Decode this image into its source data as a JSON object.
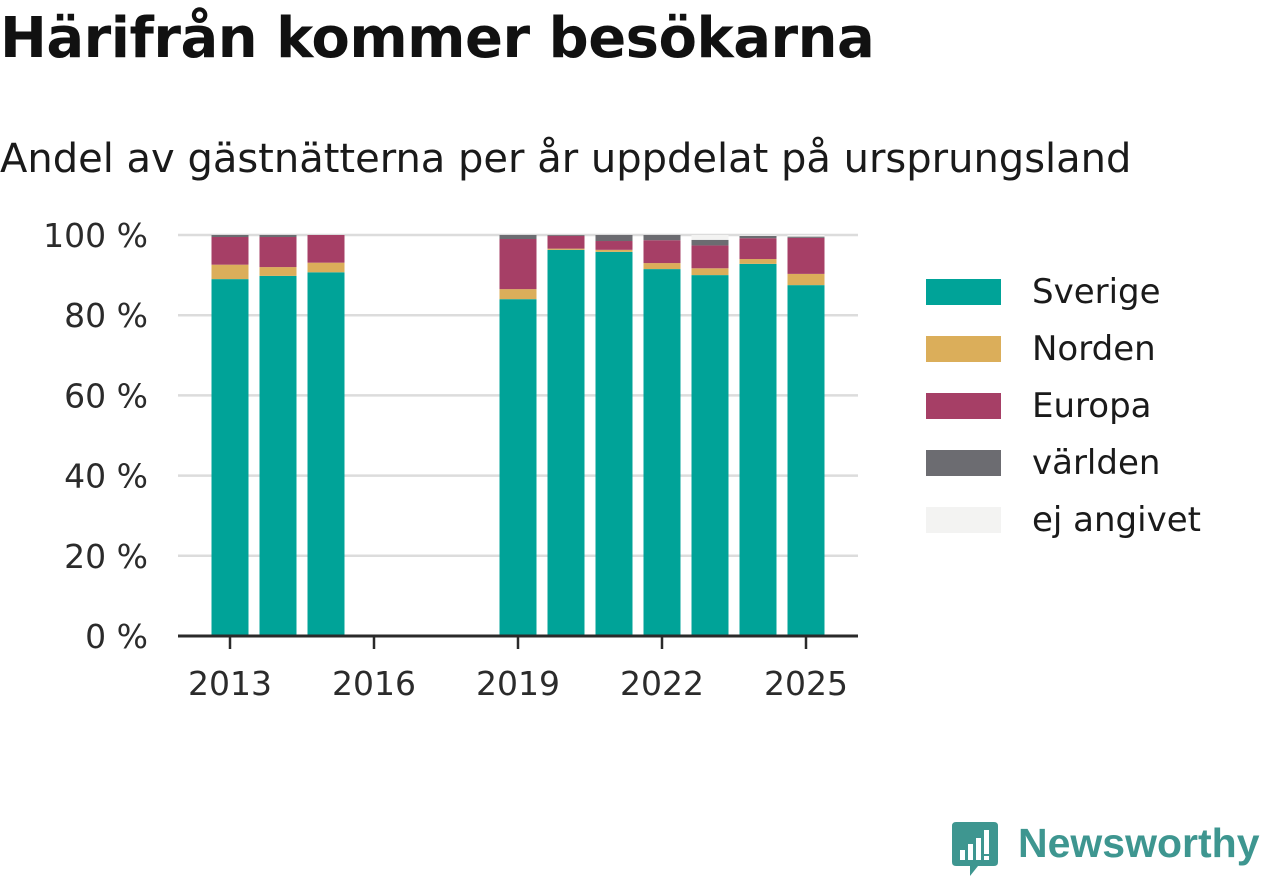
{
  "title": "Härifrån kommer besökarna",
  "subtitle": "Andel av gästnätterna per år uppdelat på ursprungsland",
  "brand": {
    "name": "Newsworthy",
    "icon": "newsworthy-logo-icon",
    "color": "#3e9690"
  },
  "chart_data": {
    "type": "bar",
    "stacked": true,
    "x": [
      2013,
      2014,
      2015,
      2016,
      2017,
      2018,
      2019,
      2020,
      2021,
      2022,
      2023,
      2024,
      2025
    ],
    "x_ticks": [
      "2013",
      "2016",
      "2019",
      "2022",
      "2025"
    ],
    "y_ticks": [
      "0 %",
      "20 %",
      "40 %",
      "60 %",
      "80 %",
      "100 %"
    ],
    "ylim": [
      0,
      100
    ],
    "grid": true,
    "legend_position": "right",
    "series": [
      {
        "name": "Sverige",
        "color": "#00a398",
        "values": [
          89,
          89.8,
          90.7,
          null,
          null,
          null,
          84,
          96.3,
          95.8,
          91.5,
          90,
          92.8,
          87.5
        ]
      },
      {
        "name": "Norden",
        "color": "#dbae5a",
        "values": [
          3.6,
          2.2,
          2.4,
          null,
          null,
          null,
          2.5,
          0.3,
          0.5,
          1.5,
          1.7,
          1.2,
          2.8
        ]
      },
      {
        "name": "Europa",
        "color": "#a63f66",
        "values": [
          6.9,
          7.5,
          6.9,
          null,
          null,
          null,
          12.5,
          3.2,
          2.2,
          5.7,
          5.7,
          5.2,
          9.0
        ]
      },
      {
        "name": "världen",
        "color": "#6c6c71",
        "values": [
          0.5,
          0.5,
          0,
          null,
          null,
          null,
          1.0,
          0.2,
          1.5,
          1.3,
          1.4,
          0.6,
          0.3
        ]
      },
      {
        "name": "ej angivet",
        "color": "#f3f3f2",
        "values": [
          0,
          0,
          0,
          null,
          null,
          null,
          0,
          0,
          0,
          0,
          1.2,
          0.2,
          0.4
        ]
      }
    ]
  }
}
